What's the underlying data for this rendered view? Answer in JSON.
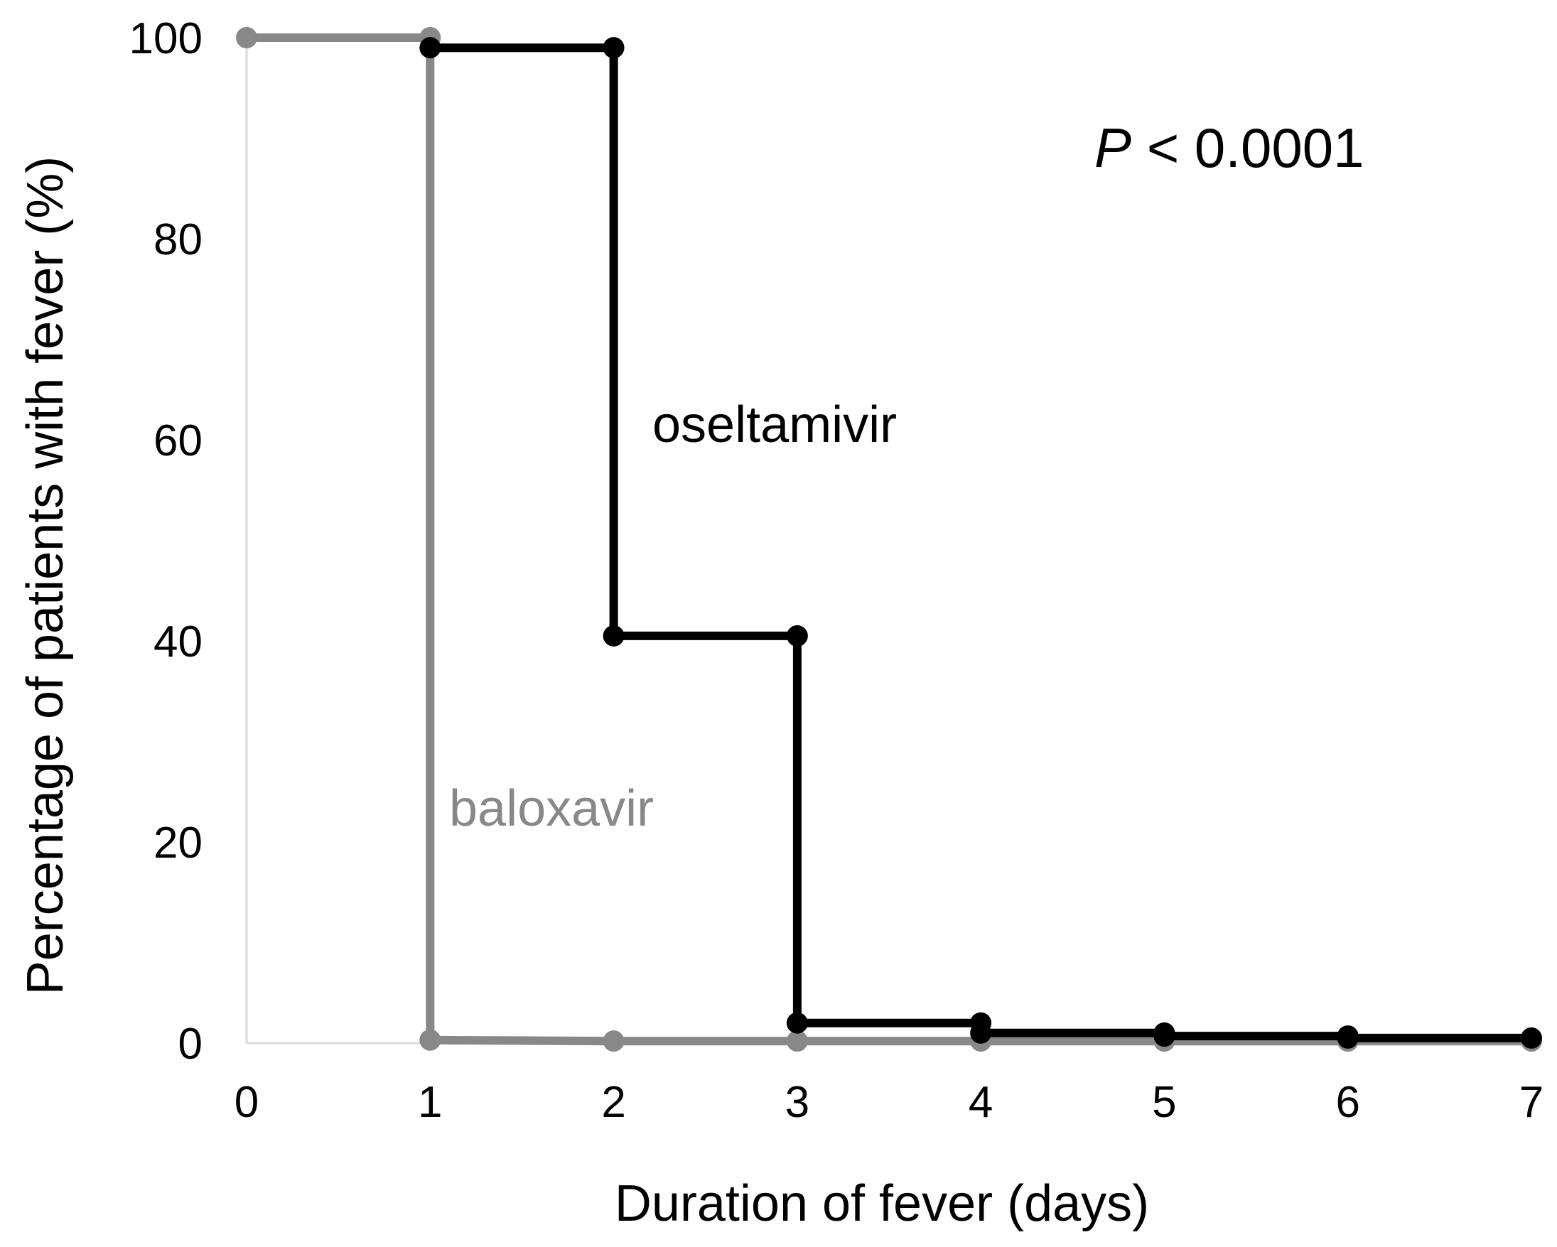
{
  "chart_data": {
    "type": "line",
    "step": true,
    "title": "",
    "xlabel": "Duration of fever (days)",
    "ylabel": "Percentage of patients with fever (%)",
    "xlim": [
      0,
      7
    ],
    "ylim": [
      0,
      100
    ],
    "x_ticks": [
      "0",
      "1",
      "2",
      "3",
      "4",
      "5",
      "6",
      "7"
    ],
    "y_ticks": [
      "0",
      "20",
      "40",
      "60",
      "80",
      "100"
    ],
    "grid": false,
    "legend": "none",
    "annotation": {
      "italic_part": "P",
      "rest": " < 0.0001"
    },
    "series": [
      {
        "name": "baloxavir",
        "color": "#888888",
        "points": [
          {
            "x": 0,
            "y": 100
          },
          {
            "x": 1,
            "y": 100
          },
          {
            "x": 1,
            "y": 0.3
          },
          {
            "x": 2,
            "y": 0.2
          },
          {
            "x": 3,
            "y": 0.2
          },
          {
            "x": 4,
            "y": 0.2
          },
          {
            "x": 5,
            "y": 0.2
          },
          {
            "x": 6,
            "y": 0.2
          },
          {
            "x": 7,
            "y": 0.2
          }
        ]
      },
      {
        "name": "oseltamivir",
        "color": "#000000",
        "points": [
          {
            "x": 1,
            "y": 99
          },
          {
            "x": 2,
            "y": 99
          },
          {
            "x": 2,
            "y": 40.5
          },
          {
            "x": 3,
            "y": 40.5
          },
          {
            "x": 3,
            "y": 2
          },
          {
            "x": 4,
            "y": 2
          },
          {
            "x": 4,
            "y": 1
          },
          {
            "x": 5,
            "y": 1
          },
          {
            "x": 5,
            "y": 0.7
          },
          {
            "x": 6,
            "y": 0.7
          },
          {
            "x": 6,
            "y": 0.5
          },
          {
            "x": 7,
            "y": 0.5
          }
        ]
      }
    ]
  }
}
